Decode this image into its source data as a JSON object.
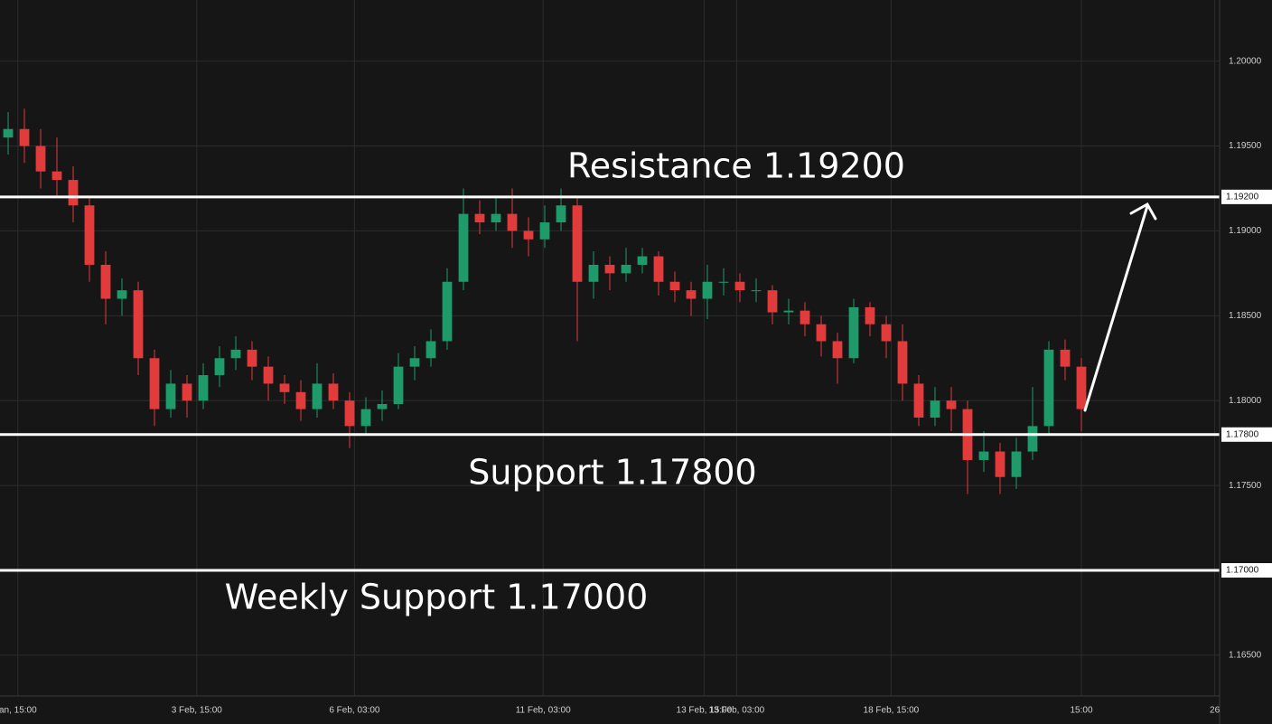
{
  "chart_data": {
    "type": "candlestick",
    "up_color": "#1f9a6b",
    "down_color": "#e23b3b",
    "grid": true,
    "level_color": "#ffffff",
    "xlim": [
      -0.5,
      74.5
    ],
    "xticks": [
      {
        "value": 0.6,
        "label": "an, 15:00"
      },
      {
        "value": 11.6,
        "label": "3 Feb, 15:00"
      },
      {
        "value": 21.3,
        "label": "6 Feb, 03:00"
      },
      {
        "value": 32.9,
        "label": "11 Feb, 03:00"
      },
      {
        "value": 42.8,
        "label": "13 Feb, 15:00"
      },
      {
        "value": 44.8,
        "label": "13 Feb, 03:00"
      },
      {
        "value": 54.3,
        "label": "18 Feb, 15:00"
      },
      {
        "value": 66,
        "label": "15:00"
      },
      {
        "value": 74.2,
        "label": "26"
      }
    ],
    "ylim": [
      1.1626,
      1.2036
    ],
    "yticks": [
      {
        "value": 1.165,
        "label": "1.16500"
      },
      {
        "value": 1.17,
        "label": "1.17000"
      },
      {
        "value": 1.175,
        "label": "1.17500"
      },
      {
        "value": 1.18,
        "label": "1.18000"
      },
      {
        "value": 1.185,
        "label": "1.18500"
      },
      {
        "value": 1.19,
        "label": "1.19000"
      },
      {
        "value": 1.195,
        "label": "1.19500"
      },
      {
        "value": 1.2,
        "label": "1.20000"
      }
    ],
    "levels": [
      {
        "value": 1.192,
        "label": "1.19200",
        "text": "Resistance 1.19200"
      },
      {
        "value": 1.178,
        "label": "1.17800",
        "text": "Support 1.17800"
      },
      {
        "value": 1.17,
        "label": "1.17000",
        "text": "Weekly Support 1.17000"
      }
    ],
    "candles": [
      [
        1.1955,
        1.197,
        1.1945,
        1.196
      ],
      [
        1.196,
        1.1972,
        1.194,
        1.195
      ],
      [
        1.195,
        1.196,
        1.1925,
        1.1935
      ],
      [
        1.1935,
        1.1955,
        1.192,
        1.193
      ],
      [
        1.193,
        1.1938,
        1.1905,
        1.1915
      ],
      [
        1.1915,
        1.192,
        1.187,
        1.188
      ],
      [
        1.188,
        1.1888,
        1.1845,
        1.186
      ],
      [
        1.186,
        1.1872,
        1.185,
        1.1865
      ],
      [
        1.1865,
        1.187,
        1.1815,
        1.1825
      ],
      [
        1.1825,
        1.183,
        1.1785,
        1.1795
      ],
      [
        1.1795,
        1.1818,
        1.179,
        1.181
      ],
      [
        1.181,
        1.1815,
        1.179,
        1.18
      ],
      [
        1.18,
        1.1822,
        1.1795,
        1.1815
      ],
      [
        1.1815,
        1.1832,
        1.1808,
        1.1825
      ],
      [
        1.1825,
        1.1838,
        1.1818,
        1.183
      ],
      [
        1.183,
        1.1835,
        1.1812,
        1.182
      ],
      [
        1.182,
        1.1826,
        1.18,
        1.181
      ],
      [
        1.181,
        1.1815,
        1.1798,
        1.1805
      ],
      [
        1.1805,
        1.1812,
        1.1788,
        1.1795
      ],
      [
        1.1795,
        1.1822,
        1.179,
        1.181
      ],
      [
        1.181,
        1.1816,
        1.1795,
        1.18
      ],
      [
        1.18,
        1.1805,
        1.1772,
        1.1785
      ],
      [
        1.1785,
        1.1802,
        1.178,
        1.1795
      ],
      [
        1.1795,
        1.1806,
        1.1788,
        1.1798
      ],
      [
        1.1798,
        1.1828,
        1.1795,
        1.182
      ],
      [
        1.182,
        1.1832,
        1.1812,
        1.1825
      ],
      [
        1.1825,
        1.1842,
        1.182,
        1.1835
      ],
      [
        1.1835,
        1.1878,
        1.183,
        1.187
      ],
      [
        1.187,
        1.1925,
        1.1865,
        1.191
      ],
      [
        1.191,
        1.1918,
        1.1898,
        1.1905
      ],
      [
        1.1905,
        1.192,
        1.19,
        1.191
      ],
      [
        1.191,
        1.1925,
        1.189,
        1.19
      ],
      [
        1.19,
        1.1908,
        1.1885,
        1.1895
      ],
      [
        1.1895,
        1.1915,
        1.189,
        1.1905
      ],
      [
        1.1905,
        1.1925,
        1.19,
        1.1915
      ],
      [
        1.1915,
        1.192,
        1.1835,
        1.187
      ],
      [
        1.187,
        1.1888,
        1.186,
        1.188
      ],
      [
        1.188,
        1.1885,
        1.1865,
        1.1875
      ],
      [
        1.1875,
        1.189,
        1.187,
        1.188
      ],
      [
        1.188,
        1.189,
        1.1875,
        1.1885
      ],
      [
        1.1885,
        1.1888,
        1.1862,
        1.187
      ],
      [
        1.187,
        1.1876,
        1.1858,
        1.1865
      ],
      [
        1.1865,
        1.187,
        1.185,
        1.186
      ],
      [
        1.186,
        1.188,
        1.1848,
        1.187
      ],
      [
        1.187,
        1.1878,
        1.1862,
        1.187
      ],
      [
        1.187,
        1.1875,
        1.1858,
        1.1865
      ],
      [
        1.1865,
        1.1872,
        1.1858,
        1.1865
      ],
      [
        1.1865,
        1.1868,
        1.1845,
        1.1852
      ],
      [
        1.1852,
        1.186,
        1.1845,
        1.1853
      ],
      [
        1.1853,
        1.1858,
        1.1838,
        1.1845
      ],
      [
        1.1845,
        1.185,
        1.1826,
        1.1835
      ],
      [
        1.1835,
        1.184,
        1.181,
        1.1825
      ],
      [
        1.1825,
        1.186,
        1.1822,
        1.1855
      ],
      [
        1.1855,
        1.1858,
        1.1838,
        1.1845
      ],
      [
        1.1845,
        1.185,
        1.1825,
        1.1835
      ],
      [
        1.1835,
        1.1845,
        1.18,
        1.181
      ],
      [
        1.181,
        1.1815,
        1.1785,
        1.179
      ],
      [
        1.179,
        1.1808,
        1.1785,
        1.18
      ],
      [
        1.18,
        1.1808,
        1.1782,
        1.1795
      ],
      [
        1.1795,
        1.18,
        1.1745,
        1.1765
      ],
      [
        1.1765,
        1.1782,
        1.1758,
        1.177
      ],
      [
        1.177,
        1.1775,
        1.1745,
        1.1755
      ],
      [
        1.1755,
        1.1778,
        1.1748,
        1.177
      ],
      [
        1.177,
        1.1808,
        1.1765,
        1.1785
      ],
      [
        1.1785,
        1.1835,
        1.178,
        1.183
      ],
      [
        1.183,
        1.1836,
        1.1812,
        1.182
      ],
      [
        1.182,
        1.1825,
        1.1782,
        1.1795
      ]
    ]
  }
}
